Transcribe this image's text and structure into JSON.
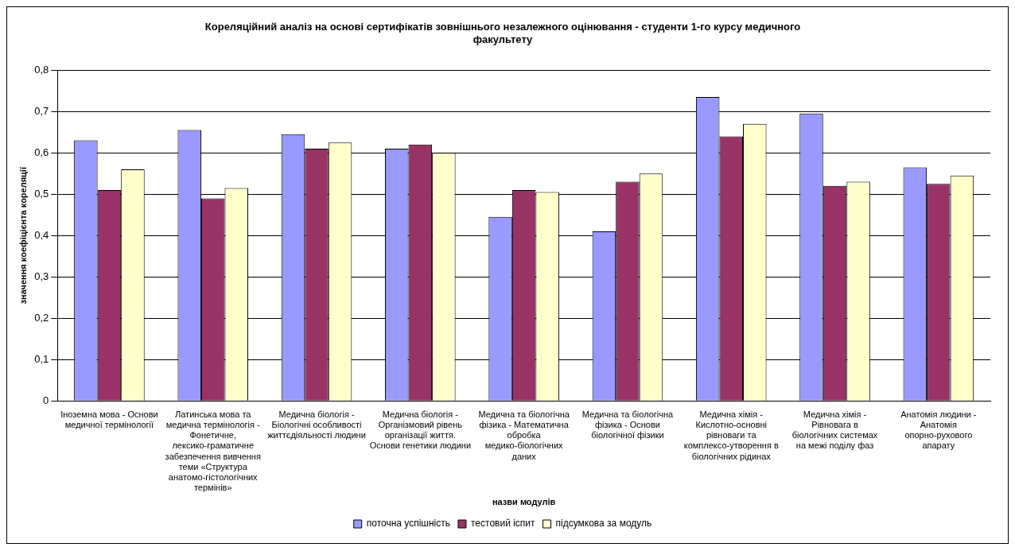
{
  "chart_data": {
    "type": "bar",
    "title": "Кореляційний аналіз на основі сертифікатів зовнішнього незалежного оцінювання - студенти 1-го курсу медичного факультету",
    "xlabel": "назви модулів",
    "ylabel": "значення коефіцієнта кореляції",
    "categories": [
      "Іноземна мова - Основи медичної термінології",
      "Латинська мова та медична термінологія - Фонетичне, лексико-граматичне забезпечення вивчення теми «Структура анатомо-гістологічних термінів»",
      "Медична біологія - Біологічні особливості життєдіяльності людини",
      "Медична біологія - Організмовий рівень організації життя. Основи генетики людини",
      "Медична та біологічна фізика - Математична обробка медико-біологічних даних",
      "Медична та біологічна фізика - Основи біологічної фізики",
      "Медична хімія - Кислотно-основні рівноваги та комплексо-утворення в біологічних рідинах",
      "Медична хімія - Рівновага в біологічних системах на межі поділу фаз",
      "Анатомія людини - Анатомія опорно-рухового апарату"
    ],
    "series": [
      {
        "name": "поточна успішність",
        "color": "#9999ff",
        "values": [
          0.63,
          0.655,
          0.645,
          0.61,
          0.445,
          0.41,
          0.735,
          0.695,
          0.565
        ]
      },
      {
        "name": "тестовий іспит",
        "color": "#993366",
        "values": [
          0.51,
          0.49,
          0.61,
          0.62,
          0.51,
          0.53,
          0.64,
          0.52,
          0.525
        ]
      },
      {
        "name": "підсумкова за модуль",
        "color": "#ffffcc",
        "values": [
          0.56,
          0.515,
          0.625,
          0.6,
          0.505,
          0.55,
          0.67,
          0.53,
          0.545
        ]
      }
    ],
    "ylim": [
      0,
      0.8
    ],
    "yticks": [
      {
        "value": 0,
        "label": "0"
      },
      {
        "value": 0.1,
        "label": "0,1"
      },
      {
        "value": 0.2,
        "label": "0,2"
      },
      {
        "value": 0.3,
        "label": "0,3"
      },
      {
        "value": 0.4,
        "label": "0,4"
      },
      {
        "value": 0.5,
        "label": "0,5"
      },
      {
        "value": 0.6,
        "label": "0,6"
      },
      {
        "value": 0.7,
        "label": "0,7"
      },
      {
        "value": 0.8,
        "label": "0,8"
      }
    ],
    "grid": "y",
    "legend": "bottom"
  }
}
